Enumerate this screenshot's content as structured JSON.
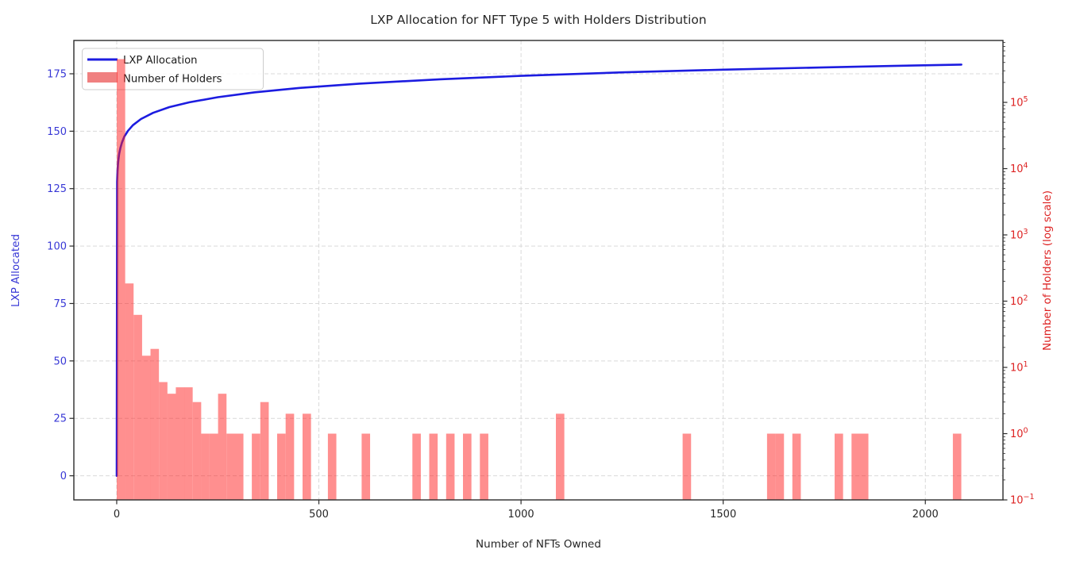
{
  "chart_data": {
    "type": "line+bar",
    "title": "LXP Allocation for NFT Type 5 with Holders Distribution",
    "xlabel": "Number of NFTs Owned",
    "grid": {
      "color": "#d9d9d9",
      "style": "dashed",
      "on": true
    },
    "x_axis": {
      "ticks": [
        0,
        500,
        1000,
        1500,
        2000
      ],
      "lim": [
        -106,
        2192
      ],
      "tick_color": "#262626"
    },
    "left_axis": {
      "label": "LXP Allocated",
      "color": "#3838d6",
      "ticks": [
        0,
        25,
        50,
        75,
        100,
        125,
        150,
        175
      ],
      "lim": [
        -10.5,
        189.5
      ]
    },
    "right_axis": {
      "label": "Number of Holders (log scale)",
      "color": "#dd2222",
      "scale": "log",
      "tick_exponents": [
        -1,
        0,
        1,
        2,
        3,
        4,
        5
      ],
      "lim": [
        0.1,
        860000
      ]
    },
    "legend": {
      "position": "upper-left",
      "items": [
        {
          "label": "LXP Allocation",
          "type": "line",
          "color": "#1c1ce0"
        },
        {
          "label": "Number of Holders",
          "type": "patch",
          "color": "#f08080"
        }
      ]
    },
    "line_series": {
      "name": "LXP Allocation",
      "color": "#1c1ce0",
      "width": 2.6,
      "points": [
        [
          0,
          0
        ],
        [
          1,
          128
        ],
        [
          2,
          132.6
        ],
        [
          3,
          135.3
        ],
        [
          4,
          137.3
        ],
        [
          6,
          140.0
        ],
        [
          9,
          142.7
        ],
        [
          13,
          145.1
        ],
        [
          19,
          147.7
        ],
        [
          28,
          150.2
        ],
        [
          40,
          152.6
        ],
        [
          60,
          155.3
        ],
        [
          90,
          158.0
        ],
        [
          130,
          160.5
        ],
        [
          180,
          162.6
        ],
        [
          250,
          164.8
        ],
        [
          340,
          166.9
        ],
        [
          450,
          168.8
        ],
        [
          600,
          170.7
        ],
        [
          800,
          172.6
        ],
        [
          1000,
          174.1
        ],
        [
          1250,
          175.6
        ],
        [
          1500,
          176.8
        ],
        [
          1750,
          177.8
        ],
        [
          1920,
          178.4
        ],
        [
          2089,
          179.0
        ]
      ]
    },
    "bar_series": {
      "name": "Number of Holders",
      "fill": "rgba(255,32,32,0.5)",
      "legend_color": "#f08080",
      "bin_width": 20.89,
      "bars": [
        [
          0,
          450000
        ],
        [
          20.9,
          185
        ],
        [
          41.8,
          62
        ],
        [
          62.7,
          15
        ],
        [
          83.6,
          19
        ],
        [
          104.5,
          6
        ],
        [
          125.3,
          4
        ],
        [
          146.2,
          5
        ],
        [
          167.1,
          5
        ],
        [
          188.0,
          3
        ],
        [
          208.9,
          1
        ],
        [
          229.8,
          1
        ],
        [
          250.7,
          4
        ],
        [
          271.6,
          1
        ],
        [
          292.5,
          1
        ],
        [
          334.2,
          1
        ],
        [
          355.1,
          3
        ],
        [
          396.9,
          1
        ],
        [
          417.8,
          2
        ],
        [
          459.6,
          2
        ],
        [
          522.3,
          1
        ],
        [
          605.8,
          1
        ],
        [
          731.2,
          1
        ],
        [
          772.9,
          1
        ],
        [
          814.7,
          1
        ],
        [
          856.5,
          1
        ],
        [
          898.3,
          1
        ],
        [
          1086.3,
          2
        ],
        [
          1399.6,
          1
        ],
        [
          1608.5,
          1
        ],
        [
          1629.4,
          1
        ],
        [
          1671.2,
          1
        ],
        [
          1775.6,
          1
        ],
        [
          1817.4,
          1
        ],
        [
          1838.3,
          1
        ],
        [
          2068.1,
          1
        ]
      ]
    }
  }
}
